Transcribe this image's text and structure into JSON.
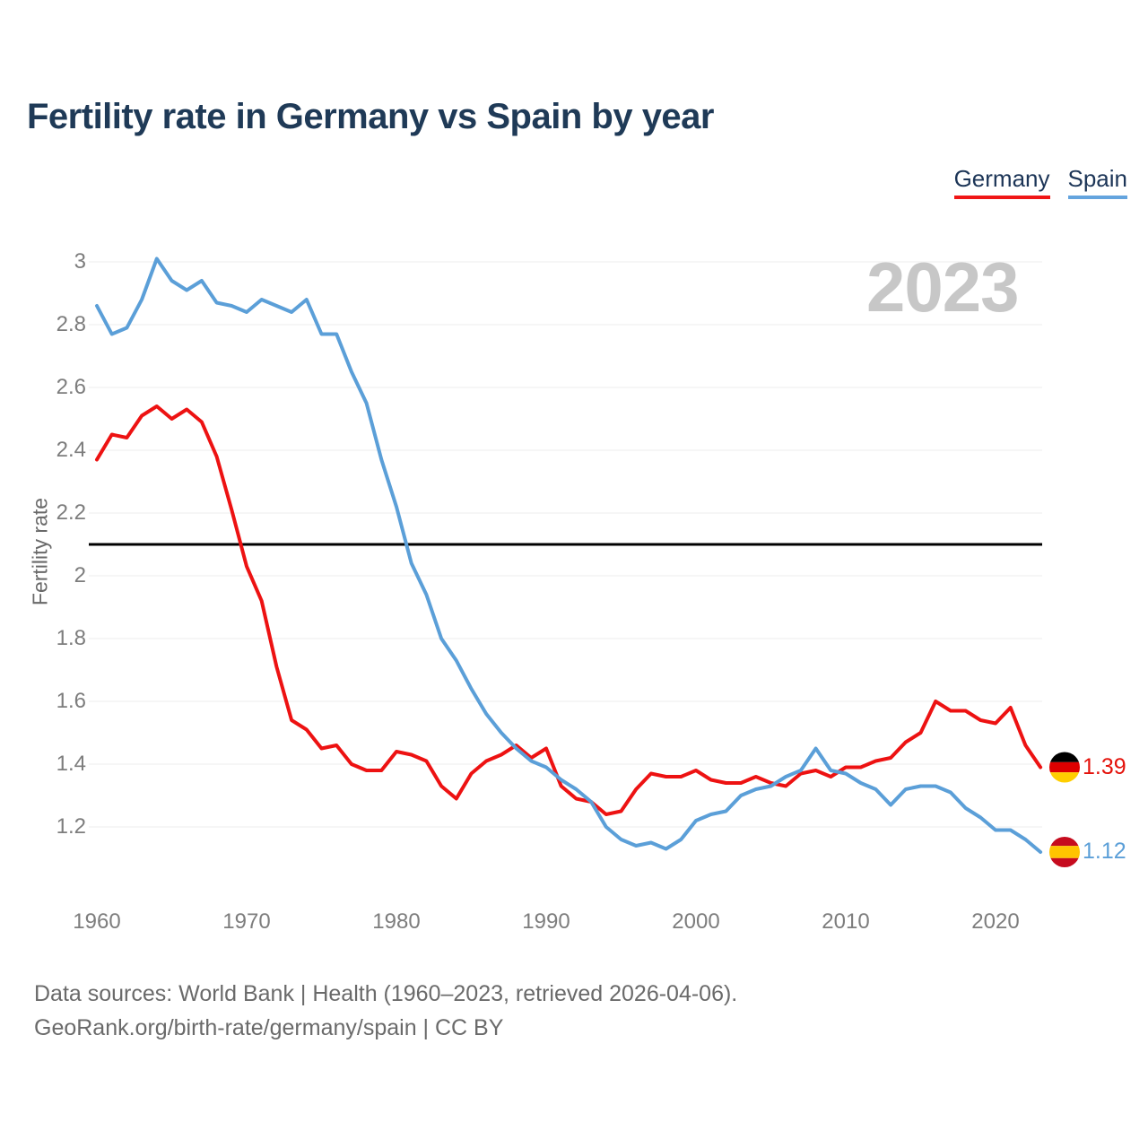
{
  "title": "Fertility rate in Germany vs Spain by year",
  "watermark": "2023",
  "end_labels": {
    "germany": {
      "value": "1.39",
      "flag_icon": "germany-flag-icon"
    },
    "spain": {
      "value": "1.12",
      "flag_icon": "spain-flag-icon"
    }
  },
  "footer": {
    "line1": "Data sources: World Bank | Health (1960–2023, retrieved 2026-04-06).",
    "line2": "GeoRank.org/birth-rate/germany/spain | CC BY"
  },
  "colors": {
    "germany_line": "#ed1212",
    "spain_line": "#5b9fd8",
    "germany_legend_underline": "#f01616",
    "spain_legend_underline": "#64a4de",
    "reference_line": "#000000",
    "title_text": "#1f3a57",
    "axis_text": "#7d7d7d",
    "watermark_text": "#c7c7c7",
    "grid": "#ececec",
    "flag_germany": [
      "#000000",
      "#dd0000",
      "#ffce00"
    ],
    "flag_spain": [
      "#c60b1e",
      "#ffc400",
      "#c60b1e"
    ]
  },
  "chart_data": {
    "type": "line",
    "title": "Fertility rate in Germany vs Spain by year",
    "ylabel": "Fertility rate",
    "xlabel": "",
    "x": [
      1960,
      1961,
      1962,
      1963,
      1964,
      1965,
      1966,
      1967,
      1968,
      1969,
      1970,
      1971,
      1972,
      1973,
      1974,
      1975,
      1976,
      1977,
      1978,
      1979,
      1980,
      1981,
      1982,
      1983,
      1984,
      1985,
      1986,
      1987,
      1988,
      1989,
      1990,
      1991,
      1992,
      1993,
      1994,
      1995,
      1996,
      1997,
      1998,
      1999,
      2000,
      2001,
      2002,
      2003,
      2004,
      2005,
      2006,
      2007,
      2008,
      2009,
      2010,
      2011,
      2012,
      2013,
      2014,
      2015,
      2016,
      2017,
      2018,
      2019,
      2020,
      2021,
      2022,
      2023
    ],
    "series": [
      {
        "name": "Germany",
        "color": "#ed1212",
        "values": [
          2.37,
          2.45,
          2.44,
          2.51,
          2.54,
          2.5,
          2.53,
          2.49,
          2.38,
          2.21,
          2.03,
          1.92,
          1.71,
          1.54,
          1.51,
          1.45,
          1.46,
          1.4,
          1.38,
          1.38,
          1.44,
          1.43,
          1.41,
          1.33,
          1.29,
          1.37,
          1.41,
          1.43,
          1.46,
          1.42,
          1.45,
          1.33,
          1.29,
          1.28,
          1.24,
          1.25,
          1.32,
          1.37,
          1.36,
          1.36,
          1.38,
          1.35,
          1.34,
          1.34,
          1.36,
          1.34,
          1.33,
          1.37,
          1.38,
          1.36,
          1.39,
          1.39,
          1.41,
          1.42,
          1.47,
          1.5,
          1.6,
          1.57,
          1.57,
          1.54,
          1.53,
          1.58,
          1.46,
          1.39
        ]
      },
      {
        "name": "Spain",
        "color": "#5b9fd8",
        "values": [
          2.86,
          2.77,
          2.79,
          2.88,
          3.01,
          2.94,
          2.91,
          2.94,
          2.87,
          2.86,
          2.84,
          2.88,
          2.86,
          2.84,
          2.88,
          2.77,
          2.77,
          2.65,
          2.55,
          2.37,
          2.22,
          2.04,
          1.94,
          1.8,
          1.73,
          1.64,
          1.56,
          1.5,
          1.45,
          1.41,
          1.39,
          1.35,
          1.32,
          1.28,
          1.2,
          1.16,
          1.14,
          1.15,
          1.13,
          1.16,
          1.22,
          1.24,
          1.25,
          1.3,
          1.32,
          1.33,
          1.36,
          1.38,
          1.45,
          1.38,
          1.37,
          1.34,
          1.32,
          1.27,
          1.32,
          1.33,
          1.33,
          1.31,
          1.26,
          1.23,
          1.19,
          1.19,
          1.16,
          1.12
        ]
      }
    ],
    "yticks": [
      1.2,
      1.4,
      1.6,
      1.8,
      2,
      2.2,
      2.4,
      2.6,
      2.8,
      3
    ],
    "ytick_labels": [
      "1.2",
      "1.4",
      "1.6",
      "1.8",
      "2",
      "2.2",
      "2.4",
      "2.6",
      "2.8",
      "3"
    ],
    "xticks": [
      1960,
      1970,
      1980,
      1990,
      2000,
      2010,
      2020
    ],
    "xlim": [
      1960,
      2023
    ],
    "ylim": [
      1.05,
      3.05
    ],
    "grid": true,
    "reference_line": {
      "value": 2.1,
      "color": "#000000"
    },
    "legend_position": "top-right",
    "annotations": [
      {
        "text": "2023",
        "position": "top-right-watermark"
      }
    ]
  }
}
